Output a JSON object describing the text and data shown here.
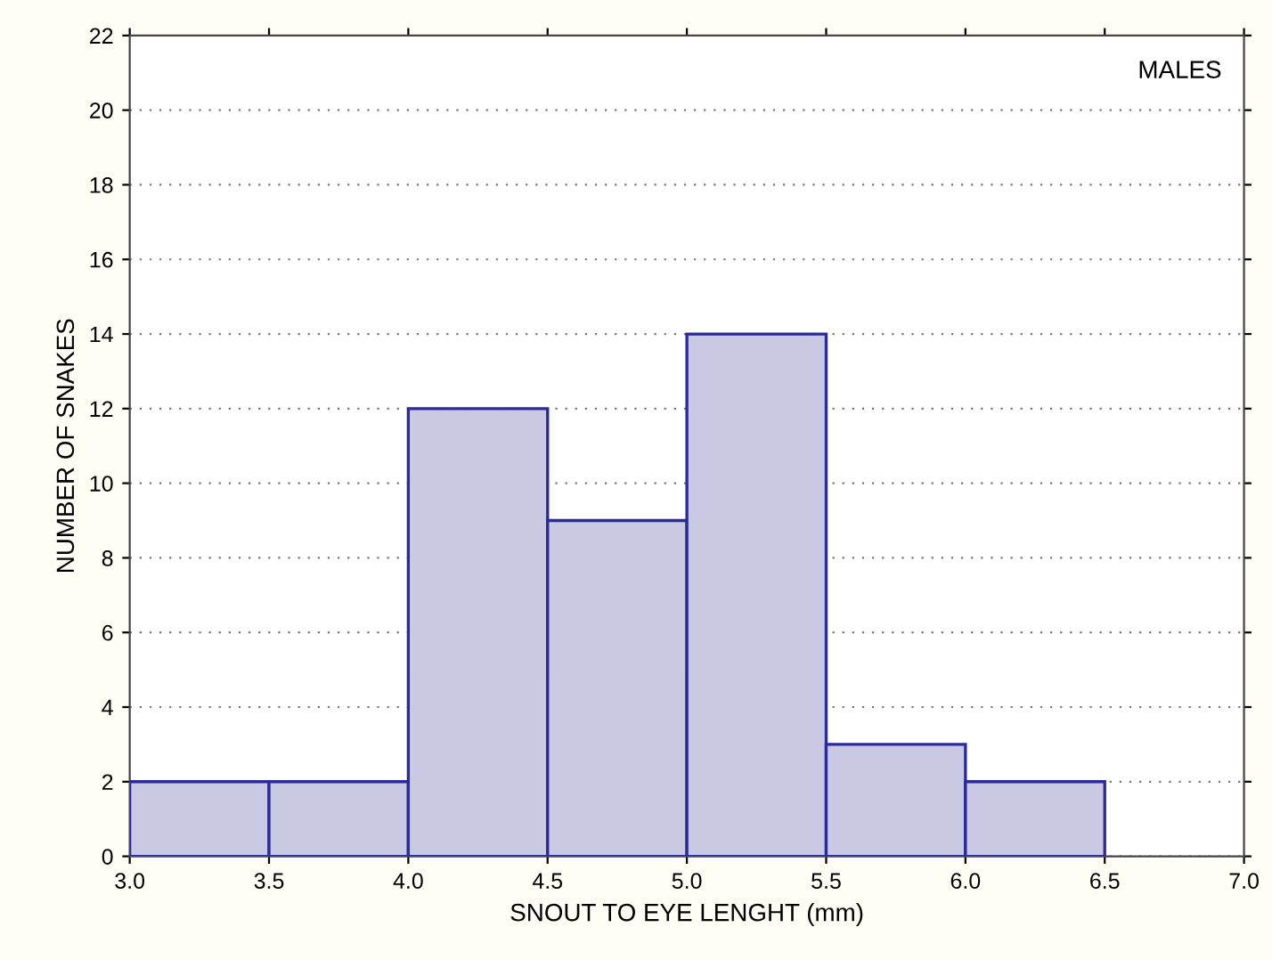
{
  "chart_data": {
    "type": "histogram",
    "xlabel": "SNOUT TO EYE LENGHT (mm)",
    "ylabel": "NUMBER OF SNAKES",
    "annotations": [
      "MALES"
    ],
    "bins": [
      3.0,
      3.5,
      4.0,
      4.5,
      5.0,
      5.5,
      6.0,
      6.5
    ],
    "values": [
      2,
      2,
      12,
      9,
      14,
      3,
      2
    ],
    "color": "#c9c9e3",
    "xlim": [
      3.0,
      7.0
    ],
    "xticks": [
      {
        "value": 3.0,
        "label": "3.0"
      },
      {
        "value": 3.5,
        "label": "3.5"
      },
      {
        "value": 4.0,
        "label": "4.0"
      },
      {
        "value": 4.5,
        "label": "4.5"
      },
      {
        "value": 5.0,
        "label": "5.0"
      },
      {
        "value": 5.5,
        "label": "5.5"
      },
      {
        "value": 6.0,
        "label": "6.0"
      },
      {
        "value": 6.5,
        "label": "6.5"
      },
      {
        "value": 7.0,
        "label": "7.0"
      }
    ],
    "ylim": [
      0,
      22
    ],
    "yticks": [
      0,
      2,
      4,
      6,
      8,
      10,
      12,
      14,
      16,
      18,
      20,
      22
    ],
    "grid": "y",
    "legend": false
  }
}
